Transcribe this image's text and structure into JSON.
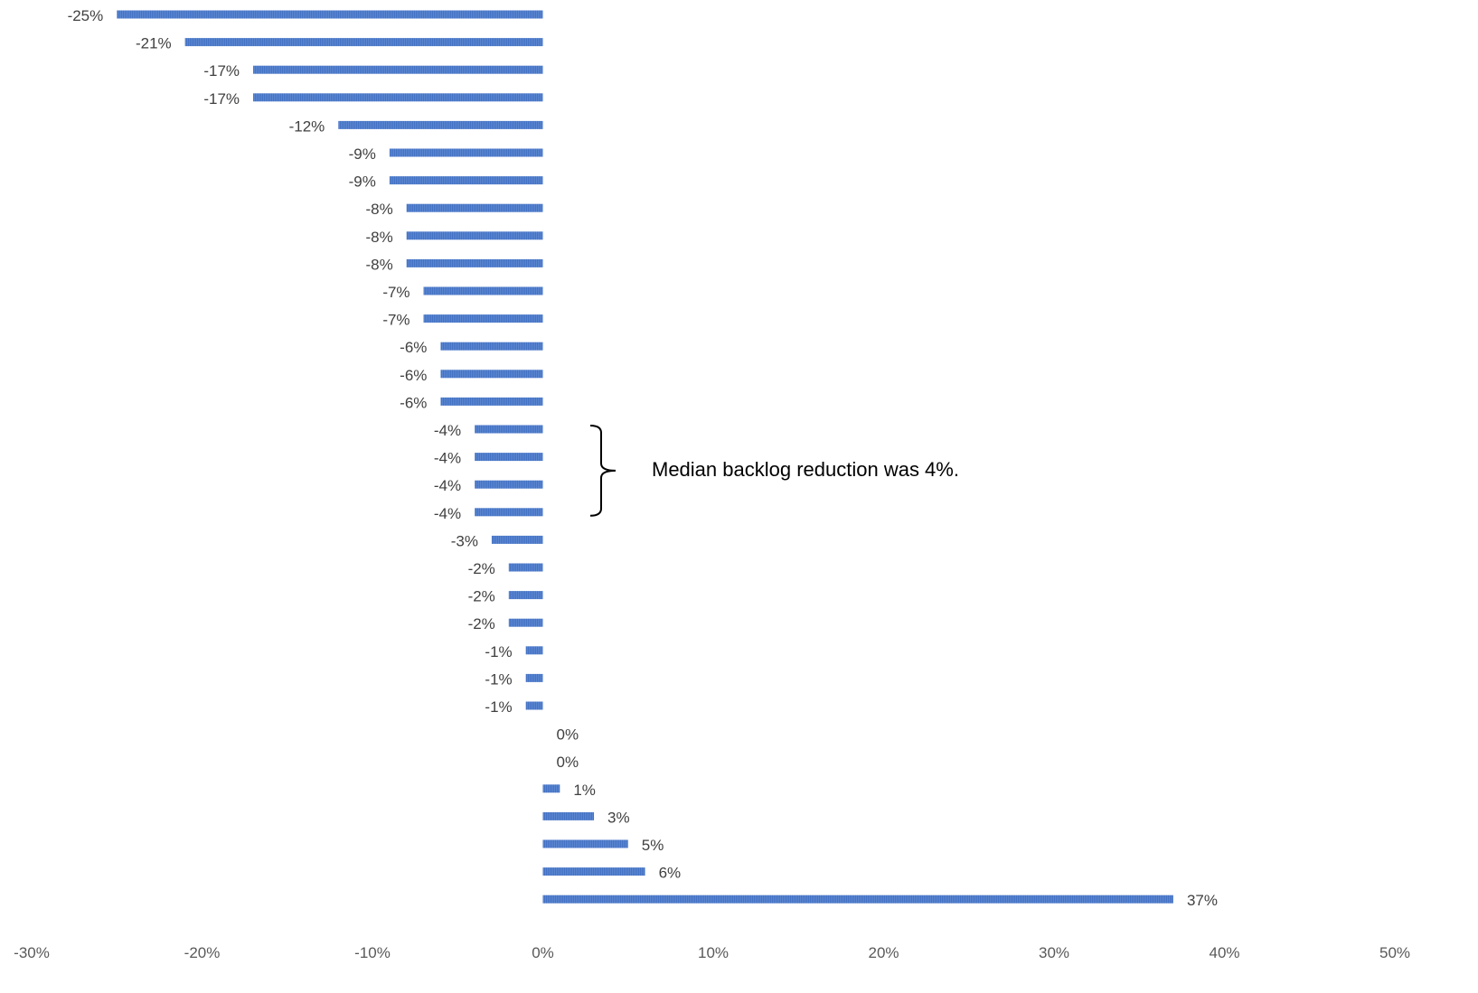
{
  "chart_data": {
    "type": "bar",
    "orientation": "horizontal",
    "title": "",
    "xlabel": "",
    "ylabel": "",
    "xlim": [
      -30,
      50
    ],
    "x_ticks": [
      -30,
      -20,
      -10,
      0,
      10,
      20,
      30,
      40,
      50
    ],
    "x_tick_labels": [
      "-30%",
      "-20%",
      "-10%",
      "0%",
      "10%",
      "20%",
      "30%",
      "40%",
      "50%"
    ],
    "grid": false,
    "legend": "none",
    "bar_color": "#4472C4",
    "values": [
      -25,
      -21,
      -17,
      -17,
      -12,
      -9,
      -9,
      -8,
      -8,
      -8,
      -7,
      -7,
      -6,
      -6,
      -6,
      -4,
      -4,
      -4,
      -4,
      -3,
      -2,
      -2,
      -2,
      -1,
      -1,
      -1,
      0,
      0,
      1,
      3,
      5,
      6,
      37
    ],
    "data_labels": [
      "-25%",
      "-21%",
      "-17%",
      "-17%",
      "-12%",
      "-9%",
      "-9%",
      "-8%",
      "-8%",
      "-8%",
      "-7%",
      "-7%",
      "-6%",
      "-6%",
      "-6%",
      "-4%",
      "-4%",
      "-4%",
      "-4%",
      "-3%",
      "-2%",
      "-2%",
      "-2%",
      "-1%",
      "-1%",
      "-1%",
      "0%",
      "0%",
      "1%",
      "3%",
      "5%",
      "6%",
      "37%"
    ],
    "annotation": {
      "text": "Median backlog reduction was 4%.",
      "bracket_from_index": 15,
      "bracket_to_index": 18
    }
  }
}
